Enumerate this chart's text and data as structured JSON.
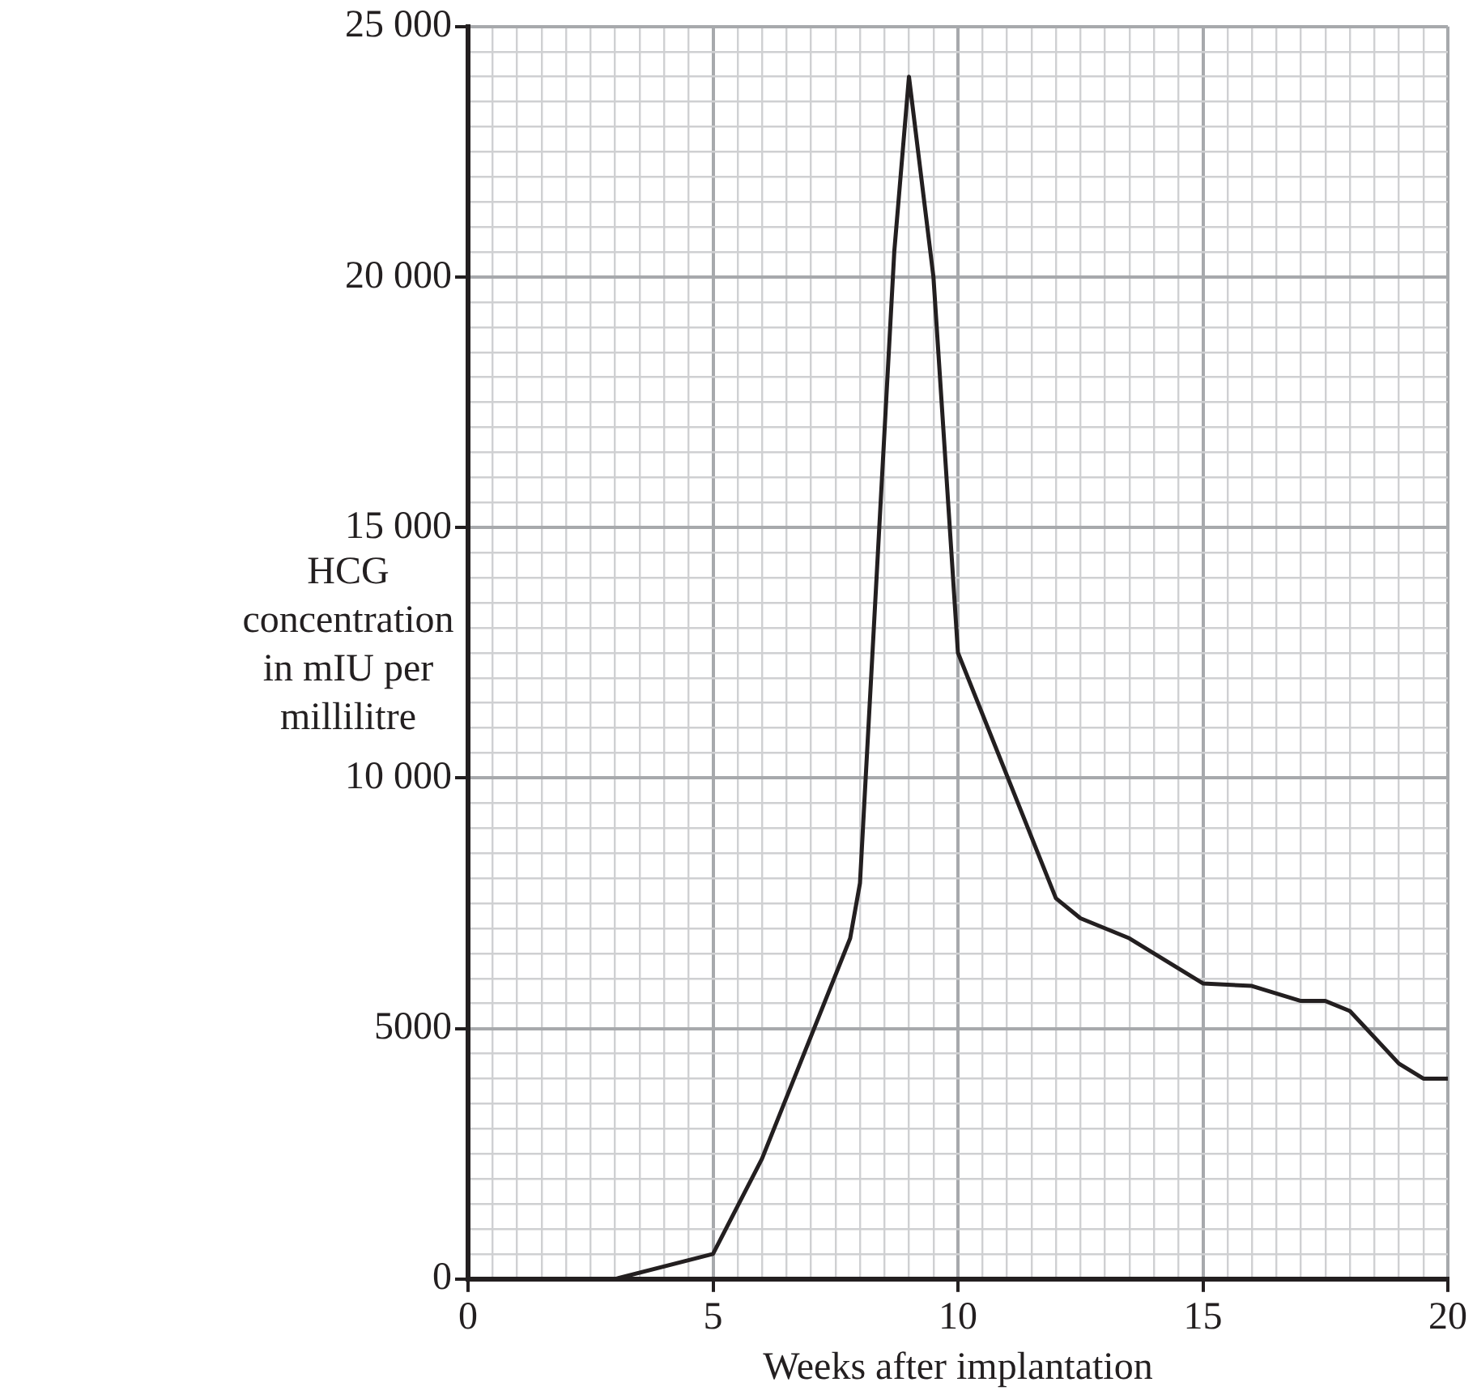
{
  "chart_data": {
    "type": "line",
    "xlabel": "Weeks after implantation",
    "ylabel": "HCG concentration in mIU per millilitre",
    "x": [
      3,
      5,
      6,
      7.8,
      8,
      8.7,
      9,
      9.5,
      10,
      12,
      12.5,
      13.5,
      15,
      16,
      17,
      17.5,
      18,
      19,
      19.5,
      20
    ],
    "series": [
      {
        "color": "#231f20",
        "values": [
          0,
          500,
          2400,
          6800,
          7900,
          20500,
          24000,
          20000,
          12500,
          7600,
          7200,
          6800,
          5900,
          5850,
          5550,
          5550,
          5350,
          4300,
          4000,
          4000
        ]
      }
    ],
    "xlim": [
      0,
      20
    ],
    "ylim": [
      0,
      25000
    ],
    "xticks": [
      0,
      {
        "value": 0.5,
        "label": null
      },
      {
        "value": 1,
        "label": null
      },
      {
        "value": 1.5,
        "label": null
      },
      {
        "value": 2,
        "label": null
      },
      {
        "value": 2.5,
        "label": null
      },
      {
        "value": 3,
        "label": null
      },
      {
        "value": 3.5,
        "label": null
      },
      {
        "value": 4,
        "label": null
      },
      {
        "value": 4.5,
        "label": null
      },
      5,
      {
        "value": 5.5,
        "label": null
      },
      {
        "value": 6,
        "label": null
      },
      {
        "value": 6.5,
        "label": null
      },
      {
        "value": 7,
        "label": null
      },
      {
        "value": 7.5,
        "label": null
      },
      {
        "value": 8,
        "label": null
      },
      {
        "value": 8.5,
        "label": null
      },
      {
        "value": 9,
        "label": null
      },
      {
        "value": 9.5,
        "label": null
      },
      10,
      {
        "value": 10.5,
        "label": null
      },
      {
        "value": 11,
        "label": null
      },
      {
        "value": 11.5,
        "label": null
      },
      {
        "value": 12,
        "label": null
      },
      {
        "value": 12.5,
        "label": null
      },
      {
        "value": 13,
        "label": null
      },
      {
        "value": 13.5,
        "label": null
      },
      {
        "value": 14,
        "label": null
      },
      {
        "value": 14.5,
        "label": null
      },
      15,
      {
        "value": 15.5,
        "label": null
      },
      {
        "value": 16,
        "label": null
      },
      {
        "value": 16.5,
        "label": null
      },
      {
        "value": 17,
        "label": null
      },
      {
        "value": 17.5,
        "label": null
      },
      {
        "value": 18,
        "label": null
      },
      {
        "value": 18.5,
        "label": null
      },
      {
        "value": 19,
        "label": null
      },
      {
        "value": 19.5,
        "label": null
      },
      20
    ],
    "yticks": [
      0,
      {
        "value": 500,
        "label": null
      },
      {
        "value": 1000,
        "label": null
      },
      {
        "value": 1500,
        "label": null
      },
      {
        "value": 2000,
        "label": null
      },
      {
        "value": 2500,
        "label": null
      },
      {
        "value": 3000,
        "label": null
      },
      {
        "value": 3500,
        "label": null
      },
      {
        "value": 4000,
        "label": null
      },
      {
        "value": 4500,
        "label": null
      },
      5000,
      {
        "value": 5500,
        "label": null
      },
      {
        "value": 6000,
        "label": null
      },
      {
        "value": 6500,
        "label": null
      },
      {
        "value": 7000,
        "label": null
      },
      {
        "value": 7500,
        "label": null
      },
      {
        "value": 8000,
        "label": null
      },
      {
        "value": 8500,
        "label": null
      },
      {
        "value": 9000,
        "label": null
      },
      {
        "value": 9500,
        "label": null
      },
      {
        "value": 10000,
        "label": "10 000"
      },
      {
        "value": 10500,
        "label": null
      },
      {
        "value": 11000,
        "label": null
      },
      {
        "value": 11500,
        "label": null
      },
      {
        "value": 12000,
        "label": null
      },
      {
        "value": 12500,
        "label": null
      },
      {
        "value": 13000,
        "label": null
      },
      {
        "value": 13500,
        "label": null
      },
      {
        "value": 14000,
        "label": null
      },
      {
        "value": 14500,
        "label": null
      },
      {
        "value": 15000,
        "label": "15 000"
      },
      {
        "value": 15500,
        "label": null
      },
      {
        "value": 16000,
        "label": null
      },
      {
        "value": 16500,
        "label": null
      },
      {
        "value": 17000,
        "label": null
      },
      {
        "value": 17500,
        "label": null
      },
      {
        "value": 18000,
        "label": null
      },
      {
        "value": 18500,
        "label": null
      },
      {
        "value": 19000,
        "label": null
      },
      {
        "value": 19500,
        "label": null
      },
      {
        "value": 20000,
        "label": "20 000"
      },
      {
        "value": 20500,
        "label": null
      },
      {
        "value": 21000,
        "label": null
      },
      {
        "value": 21500,
        "label": null
      },
      {
        "value": 22000,
        "label": null
      },
      {
        "value": 22500,
        "label": null
      },
      {
        "value": 23000,
        "label": null
      },
      {
        "value": 23500,
        "label": null
      },
      {
        "value": 24000,
        "label": null
      },
      {
        "value": 24500,
        "label": null
      },
      {
        "value": 25000,
        "label": "25 000"
      }
    ],
    "grid": true,
    "marker": "none",
    "line_style": "solid"
  }
}
